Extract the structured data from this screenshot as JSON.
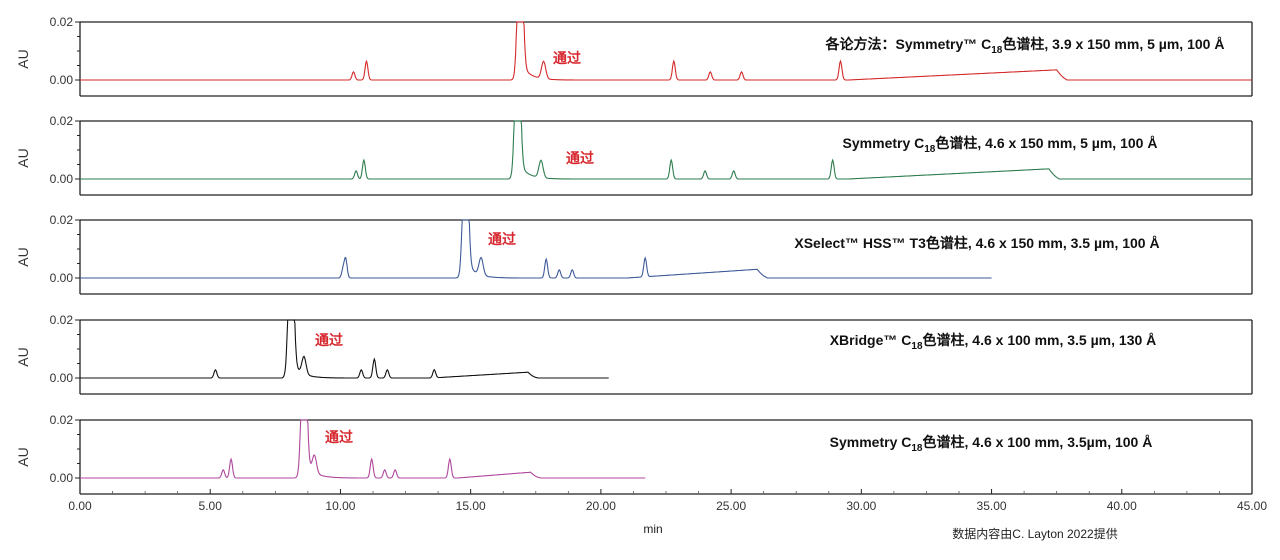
{
  "chart_data": {
    "type": "line",
    "title": "",
    "xlabel": "min",
    "ylabel": "AU",
    "xlim": [
      0,
      45
    ],
    "x_ticks": [
      "0.00",
      "5.00",
      "10.00",
      "15.00",
      "20.00",
      "25.00",
      "30.00",
      "35.00",
      "40.00",
      "45.00"
    ],
    "y_ticks": [
      "0.00",
      "0.02"
    ],
    "ylim": [
      -0.005,
      0.02
    ],
    "grid": false,
    "legend": "none",
    "credit": "数据内容由C. Layton 2022提供",
    "panels": [
      {
        "name": "Symmetry C18 3.9x150 (compendial method)",
        "title_prefix": "各论方法：Symmetry™ C",
        "title_sub": "18",
        "title_suffix": "色谱柱, 3.9 x 150 mm, 5 µm, 100 Å",
        "color": "#d42a2a",
        "annotation": "通过",
        "run_end_min": 45.0,
        "peaks_min": [
          10.5,
          11.0,
          16.9,
          17.8,
          22.8,
          24.2,
          25.4,
          29.2
        ],
        "main_peak_min": 16.9,
        "gradient_ramp": {
          "start": 29.5,
          "end": 37.5,
          "height": 0.0035
        }
      },
      {
        "name": "Symmetry C18 4.6x150",
        "title_prefix": "Symmetry C",
        "title_sub": "18",
        "title_suffix": "色谱柱, 4.6 x 150 mm, 5 µm, 100 Å",
        "color": "#2e7d4f",
        "annotation": "通过",
        "run_end_min": 45.0,
        "peaks_min": [
          10.6,
          10.9,
          16.8,
          17.7,
          22.7,
          24.0,
          25.1,
          28.9
        ],
        "main_peak_min": 16.8,
        "gradient_ramp": {
          "start": 29.5,
          "end": 37.2,
          "height": 0.0035
        }
      },
      {
        "name": "XSelect HSS T3 4.6x150",
        "title_prefix": "XSelect™ HSS™ T3色谱柱, 4.6 x 150 mm, 3.5 µm, 100 Å",
        "title_sub": "",
        "title_suffix": "",
        "color": "#3d5a99",
        "annotation": "通过",
        "run_end_min": 35.0,
        "peaks_min": [
          10.1,
          10.2,
          14.8,
          15.4,
          17.9,
          18.4,
          18.9,
          21.7
        ],
        "main_peak_min": 14.8,
        "gradient_ramp": {
          "start": 21.0,
          "end": 26.0,
          "height": 0.003
        }
      },
      {
        "name": "XBridge C18 4.6x100",
        "title_prefix": "XBridge™ C",
        "title_sub": "18",
        "title_suffix": "色谱柱, 4.6 x 100 mm, 3.5 µm, 130 Å",
        "color": "#111111",
        "annotation": "通过",
        "run_end_min": 20.3,
        "peaks_min": [
          5.2,
          8.1,
          8.6,
          10.8,
          11.3,
          11.8,
          13.6
        ],
        "main_peak_min": 8.1,
        "gradient_ramp": {
          "start": 13.5,
          "end": 17.2,
          "height": 0.002
        }
      },
      {
        "name": "Symmetry C18 4.6x100",
        "title_prefix": "Symmetry C",
        "title_sub": "18",
        "title_suffix": "色谱柱, 4.6 x 100 mm, 3.5µm, 100 Å",
        "color": "#b0479c",
        "annotation": "通过",
        "run_end_min": 21.7,
        "peaks_min": [
          5.5,
          5.8,
          8.6,
          9.0,
          11.2,
          11.7,
          12.1,
          14.2
        ],
        "main_peak_min": 8.6,
        "gradient_ramp": {
          "start": 14.5,
          "end": 17.3,
          "height": 0.002
        }
      }
    ]
  },
  "labels": {
    "au": "AU",
    "pass": "通过",
    "xlabel": "min",
    "credit": "数据内容由C. Layton 2022提供"
  }
}
